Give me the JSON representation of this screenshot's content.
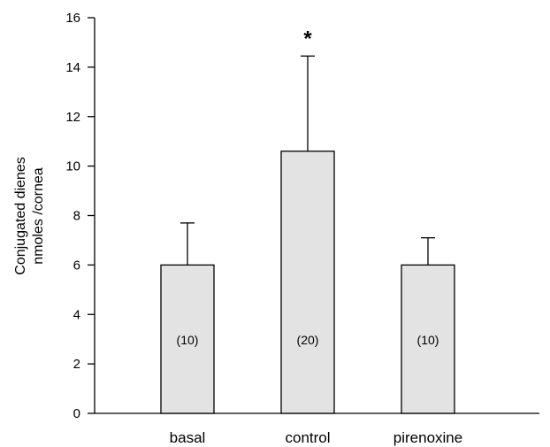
{
  "chart_data": {
    "type": "bar",
    "categories": [
      "basal",
      "control",
      "pirenoxine"
    ],
    "values": [
      6.0,
      10.6,
      6.0
    ],
    "errors": [
      1.7,
      3.85,
      1.1
    ],
    "sample_sizes": [
      "(10)",
      "(20)",
      "(10)"
    ],
    "significance": [
      "",
      "*",
      ""
    ],
    "ylabel_lines": [
      "Conjugated dienes",
      "nmoles /cornea"
    ],
    "xlabel": "",
    "ylim": [
      0,
      16
    ],
    "yticks": [
      0,
      2,
      4,
      6,
      8,
      10,
      12,
      14,
      16
    ],
    "bar_color": "#e3e3e3",
    "stroke_color": "#000000",
    "grid": false
  }
}
